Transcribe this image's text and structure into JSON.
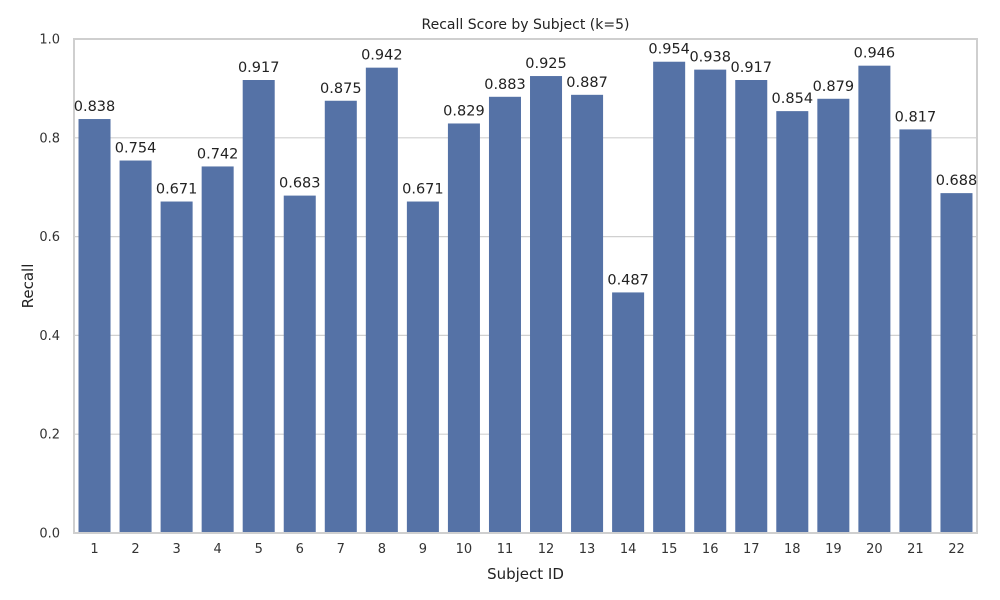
{
  "chart_data": {
    "type": "bar",
    "title": "Recall Score by Subject (k=5)",
    "xlabel": "Subject ID",
    "ylabel": "Recall",
    "categories": [
      "1",
      "2",
      "3",
      "4",
      "5",
      "6",
      "7",
      "8",
      "9",
      "10",
      "11",
      "12",
      "13",
      "14",
      "15",
      "16",
      "17",
      "18",
      "19",
      "20",
      "21",
      "22"
    ],
    "values": [
      0.838,
      0.754,
      0.671,
      0.742,
      0.917,
      0.683,
      0.875,
      0.942,
      0.671,
      0.829,
      0.883,
      0.925,
      0.887,
      0.487,
      0.954,
      0.938,
      0.917,
      0.854,
      0.879,
      0.946,
      0.817,
      0.688
    ],
    "data_labels": [
      "0.838",
      "0.754",
      "0.671",
      "0.742",
      "0.917",
      "0.683",
      "0.875",
      "0.942",
      "0.671",
      "0.829",
      "0.883",
      "0.925",
      "0.887",
      "0.487",
      "0.954",
      "0.938",
      "0.917",
      "0.854",
      "0.879",
      "0.946",
      "0.817",
      "0.688"
    ],
    "ylim": [
      0,
      1
    ],
    "yticks": [
      0.0,
      0.2,
      0.4,
      0.6,
      0.8,
      1.0
    ],
    "ytick_labels": [
      "0.0",
      "0.2",
      "0.4",
      "0.6",
      "0.8",
      "1.0"
    ],
    "grid": "horizontal",
    "bar_color": "#5572a6",
    "grid_color": "#d0d0d0"
  }
}
